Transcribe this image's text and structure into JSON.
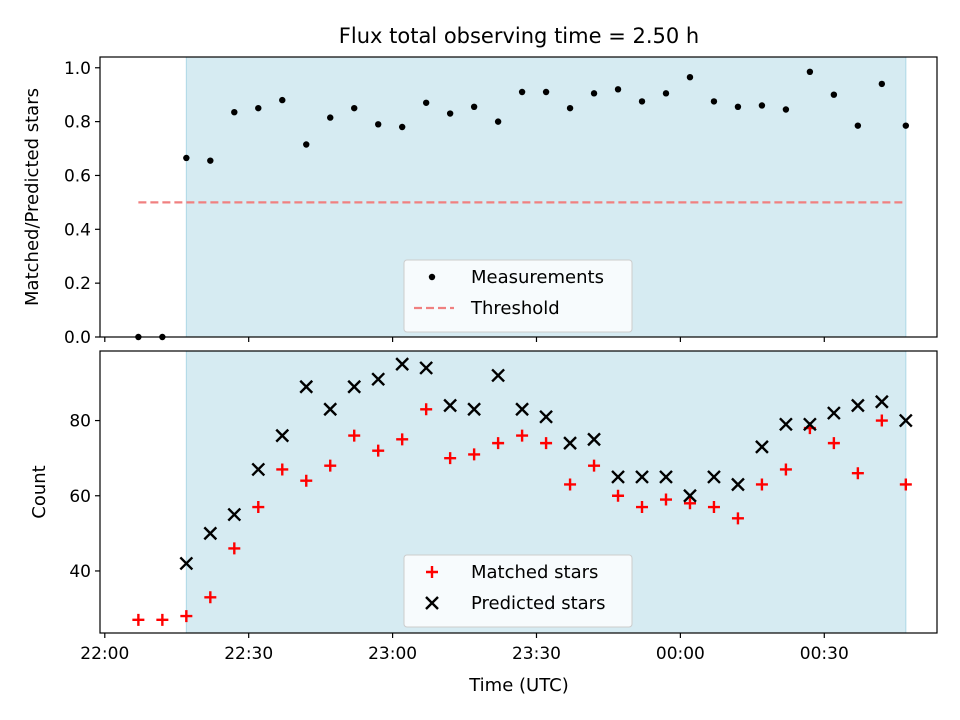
{
  "figure": {
    "title": "Flux total observing time = 2.50 h",
    "xlabel": "Time (UTC)",
    "xticks": [
      "22:00",
      "22:30",
      "23:00",
      "23:30",
      "00:00",
      "00:30"
    ]
  },
  "chart_data": [
    {
      "type": "scatter",
      "ylabel": "Matched/Predicted stars",
      "ylim": [
        0,
        1.04
      ],
      "yticks": [
        "0.0",
        "0.2",
        "0.4",
        "0.6",
        "0.8",
        "1.0"
      ],
      "legend_placement": "lower-center",
      "shaded_span": {
        "from": "22:17",
        "to": "00:47",
        "color": "#add8e6"
      },
      "threshold": {
        "label": "Threshold",
        "value": 0.5,
        "from": "22:07",
        "to": "00:47",
        "color": "#f08080"
      },
      "series": [
        {
          "name": "Measurements",
          "marker": "dot",
          "color": "#000000",
          "x": [
            "22:07",
            "22:12",
            "22:17",
            "22:22",
            "22:27",
            "22:32",
            "22:37",
            "22:42",
            "22:47",
            "22:52",
            "22:57",
            "23:02",
            "23:07",
            "23:12",
            "23:17",
            "23:22",
            "23:27",
            "23:32",
            "23:37",
            "23:42",
            "23:47",
            "23:52",
            "23:57",
            "00:02",
            "00:07",
            "00:12",
            "00:17",
            "00:22",
            "00:27",
            "00:32",
            "00:37",
            "00:42",
            "00:47"
          ],
          "y": [
            0.0,
            0.0,
            0.665,
            0.655,
            0.835,
            0.85,
            0.88,
            0.715,
            0.815,
            0.85,
            0.79,
            0.78,
            0.87,
            0.83,
            0.855,
            0.8,
            0.91,
            0.91,
            0.85,
            0.905,
            0.92,
            0.875,
            0.905,
            0.965,
            0.875,
            0.855,
            0.86,
            0.845,
            0.985,
            0.9,
            0.785,
            0.94,
            0.785
          ]
        }
      ]
    },
    {
      "type": "scatter",
      "ylabel": "Count",
      "ylim": [
        23.5,
        98.5
      ],
      "yticks": [
        "40",
        "60",
        "80"
      ],
      "legend_placement": "lower-center",
      "shaded_span": {
        "from": "22:17",
        "to": "00:47",
        "color": "#add8e6"
      },
      "series": [
        {
          "name": "Matched stars",
          "marker": "plus",
          "color": "#ff0000",
          "x": [
            "22:07",
            "22:12",
            "22:17",
            "22:22",
            "22:27",
            "22:32",
            "22:37",
            "22:42",
            "22:47",
            "22:52",
            "22:57",
            "23:02",
            "23:07",
            "23:12",
            "23:17",
            "23:22",
            "23:27",
            "23:32",
            "23:37",
            "23:42",
            "23:47",
            "23:52",
            "23:57",
            "00:02",
            "00:07",
            "00:12",
            "00:17",
            "00:22",
            "00:27",
            "00:32",
            "00:37",
            "00:42",
            "00:47"
          ],
          "y": [
            27,
            27,
            28,
            33,
            46,
            57,
            67,
            64,
            68,
            76,
            72,
            75,
            83,
            70,
            71,
            74,
            76,
            74,
            63,
            68,
            60,
            57,
            59,
            58,
            57,
            54,
            63,
            67,
            78,
            74,
            66,
            80,
            63
          ]
        },
        {
          "name": "Predicted stars",
          "marker": "x",
          "color": "#000000",
          "x": [
            "22:17",
            "22:22",
            "22:27",
            "22:32",
            "22:37",
            "22:42",
            "22:47",
            "22:52",
            "22:57",
            "23:02",
            "23:07",
            "23:12",
            "23:17",
            "23:22",
            "23:27",
            "23:32",
            "23:37",
            "23:42",
            "23:47",
            "23:52",
            "23:57",
            "00:02",
            "00:07",
            "00:12",
            "00:17",
            "00:22",
            "00:27",
            "00:32",
            "00:37",
            "00:42",
            "00:47"
          ],
          "y": [
            42,
            50,
            55,
            67,
            76,
            89,
            83,
            89,
            91,
            95,
            94,
            84,
            83,
            92,
            83,
            81,
            74,
            75,
            65,
            65,
            65,
            60,
            65,
            63,
            73,
            79,
            79,
            82,
            84,
            85,
            80
          ]
        }
      ]
    }
  ]
}
